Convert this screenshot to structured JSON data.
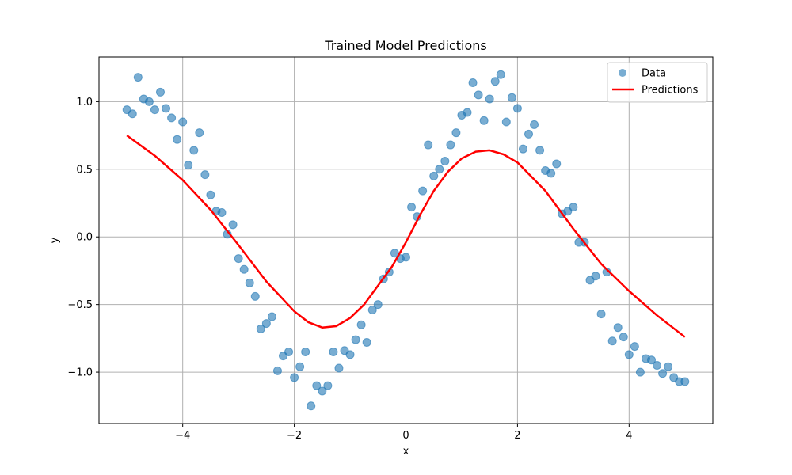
{
  "chart_data": {
    "type": "scatter",
    "title": "Trained Model Predictions",
    "xlabel": "x",
    "ylabel": "y",
    "xlim": [
      -5.5,
      5.5
    ],
    "ylim": [
      -1.38,
      1.33
    ],
    "grid": true,
    "legend_position": "top-right",
    "xticks": [
      -4,
      -2,
      0,
      2,
      4
    ],
    "xtick_labels": [
      "−4",
      "−2",
      "0",
      "2",
      "4"
    ],
    "yticks": [
      -1.0,
      -0.5,
      0.0,
      0.5,
      1.0
    ],
    "ytick_labels": [
      "−1.0",
      "−0.5",
      "0.0",
      "0.5",
      "1.0"
    ],
    "series": [
      {
        "name": "Data",
        "kind": "scatter",
        "color": "#1f77b4",
        "x": [
          -5.0,
          -4.9,
          -4.8,
          -4.7,
          -4.6,
          -4.5,
          -4.4,
          -4.3,
          -4.2,
          -4.1,
          -4.0,
          -3.9,
          -3.8,
          -3.7,
          -3.6,
          -3.5,
          -3.4,
          -3.3,
          -3.2,
          -3.1,
          -3.0,
          -2.9,
          -2.8,
          -2.7,
          -2.6,
          -2.5,
          -2.4,
          -2.3,
          -2.2,
          -2.1,
          -2.0,
          -1.9,
          -1.8,
          -1.7,
          -1.6,
          -1.5,
          -1.4,
          -1.3,
          -1.2,
          -1.1,
          -1.0,
          -0.9,
          -0.8,
          -0.7,
          -0.6,
          -0.5,
          -0.4,
          -0.3,
          -0.2,
          -0.1,
          0.0,
          0.1,
          0.2,
          0.3,
          0.4,
          0.5,
          0.6,
          0.7,
          0.8,
          0.9,
          1.0,
          1.1,
          1.2,
          1.3,
          1.4,
          1.5,
          1.6,
          1.7,
          1.8,
          1.9,
          2.0,
          2.1,
          2.2,
          2.3,
          2.4,
          2.5,
          2.6,
          2.7,
          2.8,
          2.9,
          3.0,
          3.1,
          3.2,
          3.3,
          3.4,
          3.5,
          3.6,
          3.7,
          3.8,
          3.9,
          4.0,
          4.1,
          4.2,
          4.3,
          4.4,
          4.5,
          4.6,
          4.7,
          4.8,
          4.9,
          5.0
        ],
        "y": [
          0.94,
          0.91,
          1.18,
          1.02,
          1.0,
          0.94,
          1.07,
          0.95,
          0.88,
          0.72,
          0.85,
          0.53,
          0.64,
          0.77,
          0.46,
          0.31,
          0.19,
          0.18,
          0.02,
          0.09,
          -0.16,
          -0.24,
          -0.34,
          -0.44,
          -0.68,
          -0.64,
          -0.59,
          -0.99,
          -0.88,
          -0.85,
          -1.04,
          -0.96,
          -0.85,
          -1.25,
          -1.1,
          -1.14,
          -1.1,
          -0.85,
          -0.97,
          -0.84,
          -0.87,
          -0.76,
          -0.65,
          -0.78,
          -0.54,
          -0.5,
          -0.31,
          -0.26,
          -0.12,
          -0.16,
          -0.15,
          0.22,
          0.15,
          0.34,
          0.68,
          0.45,
          0.5,
          0.56,
          0.68,
          0.77,
          0.9,
          0.92,
          1.14,
          1.05,
          0.86,
          1.02,
          1.15,
          1.2,
          0.85,
          1.03,
          0.95,
          0.65,
          0.76,
          0.83,
          0.64,
          0.49,
          0.47,
          0.54,
          0.17,
          0.19,
          0.22,
          -0.04,
          -0.04,
          -0.32,
          -0.29,
          -0.57,
          -0.26,
          -0.77,
          -0.67,
          -0.74,
          -0.87,
          -0.81,
          -1.0,
          -0.9,
          -0.91,
          -0.95,
          -1.01,
          -0.96,
          -1.04,
          -1.07,
          -1.07
        ]
      },
      {
        "name": "Predictions",
        "kind": "line",
        "color": "#ff0000",
        "x": [
          -5.0,
          -4.5,
          -4.0,
          -3.5,
          -3.0,
          -2.5,
          -2.0,
          -1.75,
          -1.5,
          -1.25,
          -1.0,
          -0.75,
          -0.5,
          -0.25,
          0.0,
          0.25,
          0.5,
          0.75,
          1.0,
          1.25,
          1.5,
          1.75,
          2.0,
          2.5,
          3.0,
          3.5,
          4.0,
          4.5,
          5.0
        ],
        "y": [
          0.75,
          0.6,
          0.42,
          0.2,
          -0.06,
          -0.33,
          -0.55,
          -0.63,
          -0.67,
          -0.66,
          -0.6,
          -0.5,
          -0.36,
          -0.22,
          -0.04,
          0.16,
          0.34,
          0.48,
          0.58,
          0.63,
          0.64,
          0.61,
          0.55,
          0.34,
          0.06,
          -0.2,
          -0.4,
          -0.58,
          -0.74
        ]
      }
    ]
  }
}
